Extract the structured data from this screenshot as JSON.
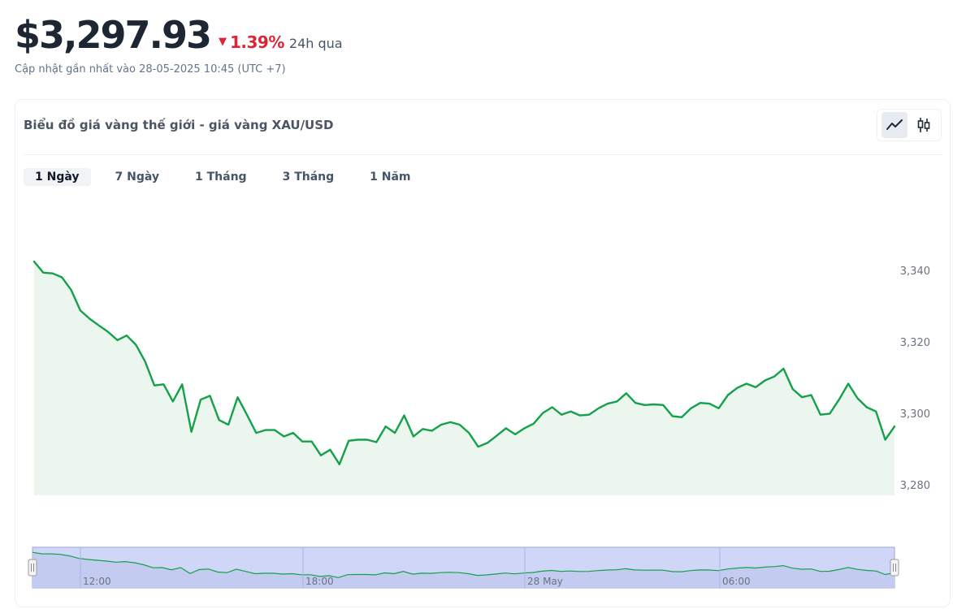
{
  "header": {
    "price": "$3,297.93",
    "change_pct": "1.39%",
    "change_period": "24h qua",
    "updated": "Cập nhật gần nhất vào 28-05-2025 10:45 (UTC +7)"
  },
  "card": {
    "title": "Biểu đồ giá vàng thế giới - giá vàng XAU/USD",
    "toggle": [
      "line-chart-icon",
      "candlestick-icon"
    ]
  },
  "tabs": [
    {
      "label": "1 Ngày",
      "active": true
    },
    {
      "label": "7 Ngày",
      "active": false
    },
    {
      "label": "1 Tháng",
      "active": false
    },
    {
      "label": "3 Tháng",
      "active": false
    },
    {
      "label": "1 Năm",
      "active": false
    }
  ],
  "colors": {
    "line": "#15a04a",
    "area": "#eaf6ee",
    "down": "#dc2637",
    "navigator": "#cfd6f8"
  },
  "chart_data": {
    "type": "area",
    "ylim": [
      3277,
      3343
    ],
    "yticks": [
      3280,
      3300,
      3320,
      3340
    ],
    "ytick_labels": [
      "3,280",
      "3,300",
      "3,320",
      "3,340"
    ],
    "navigator_labels": [
      "12:00",
      "18:00",
      "28 May",
      "06:00"
    ],
    "values": [
      3342.5,
      3339.4,
      3339.2,
      3338.1,
      3334.6,
      3328.8,
      3326.5,
      3324.6,
      3322.8,
      3320.5,
      3321.8,
      3319.2,
      3314.5,
      3307.8,
      3308.1,
      3303.3,
      3308.1,
      3294.8,
      3303.8,
      3304.9,
      3298.1,
      3296.8,
      3304.5,
      3299.6,
      3294.5,
      3295.3,
      3295.3,
      3293.5,
      3294.5,
      3292.1,
      3292.1,
      3288.2,
      3289.8,
      3285.7,
      3292.3,
      3292.6,
      3292.6,
      3291.9,
      3296.3,
      3294.5,
      3299.4,
      3293.5,
      3295.6,
      3295.1,
      3296.8,
      3297.5,
      3296.8,
      3294.5,
      3290.6,
      3291.7,
      3293.7,
      3295.8,
      3294.1,
      3295.8,
      3297.1,
      3300.1,
      3301.7,
      3299.6,
      3300.5,
      3299.4,
      3299.6,
      3301.4,
      3302.7,
      3303.3,
      3305.6,
      3302.9,
      3302.3,
      3302.5,
      3302.3,
      3299.2,
      3298.9,
      3301.4,
      3302.9,
      3302.7,
      3301.4,
      3305.1,
      3307.1,
      3308.3,
      3307.3,
      3309.2,
      3310.3,
      3312.5,
      3306.8,
      3304.5,
      3305.1,
      3299.6,
      3299.9,
      3303.8,
      3308.3,
      3304.2,
      3301.7,
      3300.5,
      3292.6,
      3296.3
    ]
  }
}
